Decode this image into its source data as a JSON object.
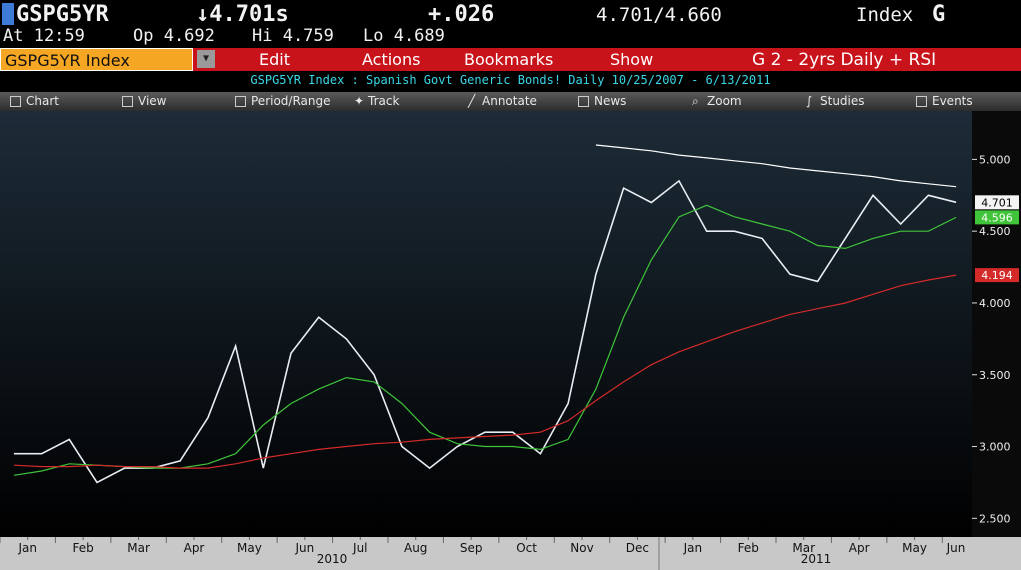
{
  "header": {
    "ticker": "GSPG5YR",
    "last": "↓4.701s",
    "change": "+.026",
    "bid_ask": "4.701/4.660",
    "market": "Index",
    "function": "G",
    "time": "At 12:59",
    "open": "Op 4.692",
    "high": "Hi 4.759",
    "low": "Lo 4.689"
  },
  "menu": {
    "security": "GSPG5YR Index",
    "items": [
      "Edit",
      "Actions",
      "Bookmarks",
      "Show"
    ],
    "chart_name": "G 2 - 2yrs Daily + RSI"
  },
  "subtitle": "GSPG5YR Index   : Spanish Govt Generic Bonds!    Daily   10/25/2007 - 6/13/2011",
  "toolbar": [
    "Chart",
    "View",
    "Period/Range",
    "Track",
    "Annotate",
    "News",
    "Zoom",
    "Studies",
    "Events"
  ],
  "chart_data": {
    "type": "line",
    "categories": [
      "Jan",
      null,
      "Feb",
      null,
      "Mar",
      null,
      "Apr",
      null,
      "May",
      null,
      "Jun",
      null,
      "Jul",
      null,
      "Aug",
      null,
      "Sep",
      null,
      "Oct",
      null,
      "Nov",
      null,
      "Dec",
      null,
      "Jan",
      null,
      "Feb",
      null,
      "Mar",
      null,
      "Apr",
      null,
      "May",
      null,
      "Jun"
    ],
    "year_labels": [
      "2010",
      "2011"
    ],
    "series": [
      {
        "color": "#e8eef4",
        "values": [
          2.95,
          2.95,
          3.05,
          2.75,
          2.85,
          2.85,
          2.9,
          3.2,
          3.7,
          2.85,
          3.65,
          3.9,
          3.75,
          3.5,
          3.0,
          2.85,
          3.0,
          3.1,
          3.1,
          2.95,
          3.3,
          4.2,
          4.8,
          4.7,
          4.85,
          4.5,
          4.5,
          4.45,
          4.2,
          4.15,
          4.45,
          4.75,
          4.55,
          4.75,
          4.701
        ]
      },
      {
        "color": "#3fc43a",
        "values": [
          2.8,
          2.83,
          2.88,
          2.87,
          2.86,
          2.85,
          2.85,
          2.88,
          2.95,
          3.15,
          3.3,
          3.4,
          3.48,
          3.45,
          3.3,
          3.1,
          3.02,
          3.0,
          3.0,
          2.98,
          3.05,
          3.4,
          3.9,
          4.3,
          4.6,
          4.68,
          4.6,
          4.55,
          4.5,
          4.4,
          4.38,
          4.45,
          4.5,
          4.5,
          4.596
        ]
      },
      {
        "color": "#d42a2a",
        "values": [
          2.87,
          2.86,
          2.86,
          2.87,
          2.86,
          2.86,
          2.85,
          2.85,
          2.88,
          2.92,
          2.95,
          2.98,
          3.0,
          3.02,
          3.03,
          3.05,
          3.06,
          3.07,
          3.08,
          3.1,
          3.18,
          3.32,
          3.45,
          3.57,
          3.66,
          3.73,
          3.8,
          3.86,
          3.92,
          3.96,
          4.0,
          4.06,
          4.12,
          4.16,
          4.194
        ]
      },
      {
        "color": "#ffffff",
        "values": [
          null,
          null,
          null,
          null,
          null,
          null,
          null,
          null,
          null,
          null,
          null,
          null,
          null,
          null,
          null,
          null,
          null,
          null,
          null,
          null,
          null,
          5.1,
          5.08,
          5.06,
          5.03,
          5.01,
          4.99,
          4.97,
          4.94,
          4.92,
          4.9,
          4.88,
          4.85,
          4.83,
          4.81
        ]
      }
    ],
    "ylim": [
      2.37,
      5.33
    ],
    "yticks": [
      {
        "value": 2.5,
        "label": "2.500"
      },
      {
        "value": 3.0,
        "label": "3.000"
      },
      {
        "value": 3.5,
        "label": "3.500"
      },
      {
        "value": 4.0,
        "label": "4.000"
      },
      {
        "value": 4.5,
        "label": "4.500"
      },
      {
        "value": 5.0,
        "label": "5.000"
      }
    ],
    "last_value_labels": [
      0,
      1,
      2
    ]
  }
}
